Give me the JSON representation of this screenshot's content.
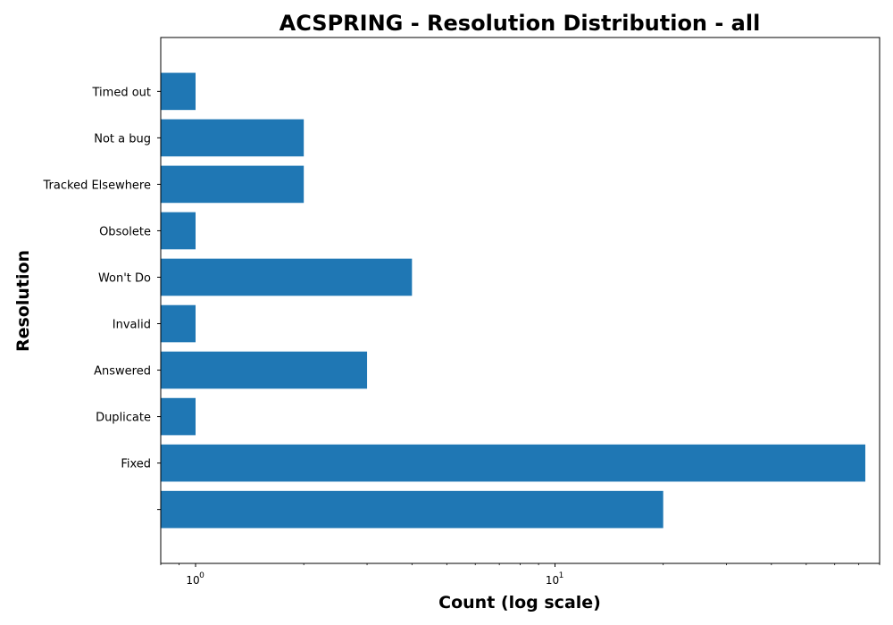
{
  "chart_data": {
    "type": "bar",
    "orientation": "horizontal",
    "title": "ACSPRING - Resolution Distribution - all",
    "xlabel": "Count (log scale)",
    "ylabel": "Resolution",
    "xscale": "log",
    "xlim": [
      0.8,
      80
    ],
    "x_tick_labels": [
      {
        "value": 1,
        "base": "10",
        "exp": "0"
      },
      {
        "value": 10,
        "base": "10",
        "exp": "1"
      }
    ],
    "categories": [
      "",
      "Fixed",
      "Duplicate",
      "Answered",
      "Invalid",
      "Won't Do",
      "Obsolete",
      "Tracked Elsewhere",
      "Not a bug",
      "Timed out"
    ],
    "values": [
      20,
      73,
      1,
      3,
      1,
      4,
      1,
      2,
      2,
      1
    ],
    "color": "#1f77b4",
    "grid": false,
    "legend": "none"
  }
}
